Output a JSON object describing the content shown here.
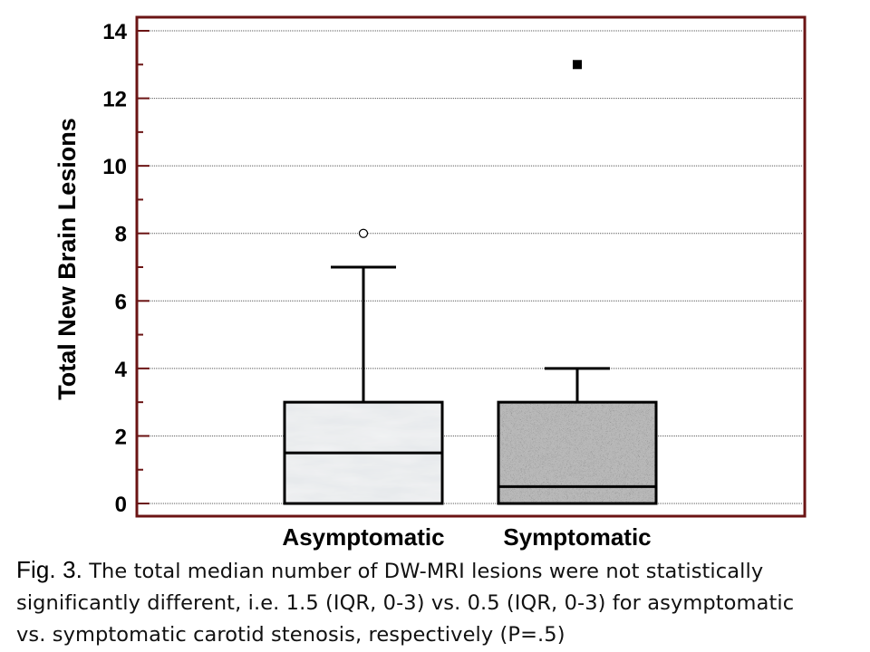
{
  "chart_data": {
    "type": "box",
    "ylabel": "Total New Brain Lesions",
    "xlabel": "",
    "ylim": [
      0,
      14
    ],
    "yticks": [
      0,
      2,
      4,
      6,
      8,
      10,
      12,
      14
    ],
    "grid": true,
    "categories": [
      "Asymptomatic",
      "Symptomatic"
    ],
    "boxes": [
      {
        "category": "Asymptomatic",
        "min": 0,
        "q1": 0,
        "median": 1.5,
        "q3": 3,
        "max": 7,
        "outliers": [
          8
        ],
        "outlier_style": "open-circle",
        "fill": "marble-light"
      },
      {
        "category": "Symptomatic",
        "min": 0,
        "q1": 0,
        "median": 0.5,
        "q3": 3,
        "max": 4,
        "outliers": [
          13
        ],
        "outlier_style": "filled-square",
        "fill": "speckled-granite"
      }
    ],
    "frame_color": "#6b1414"
  },
  "caption": {
    "label": "Fig. 3.",
    "lines": [
      " The total median number of DW-MRI lesions were not statistically",
      "significantly different, i.e. 1.5 (IQR, 0-3) vs. 0.5 (IQR, 0-3) for asymptomatic",
      "vs. symptomatic carotid stenosis, respectively (P=.5)"
    ]
  }
}
